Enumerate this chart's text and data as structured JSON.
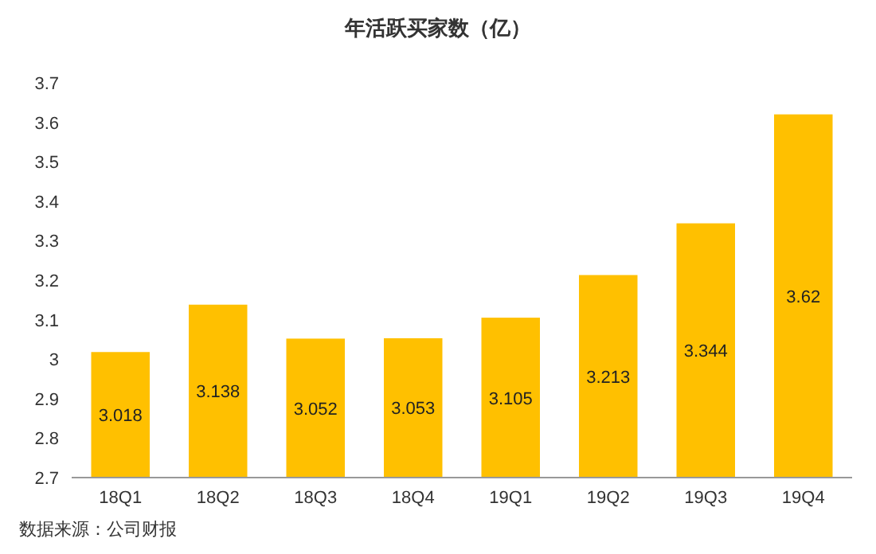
{
  "chart_data": {
    "type": "bar",
    "title": "年活跃买家数（亿）",
    "categories": [
      "18Q1",
      "18Q2",
      "18Q3",
      "18Q4",
      "19Q1",
      "19Q2",
      "19Q3",
      "19Q4"
    ],
    "values": [
      3.018,
      3.138,
      3.052,
      3.053,
      3.105,
      3.213,
      3.344,
      3.62
    ],
    "color": "#ffc000",
    "ylim": [
      2.7,
      3.7
    ],
    "yticks": [
      2.7,
      2.8,
      2.9,
      3,
      3.1,
      3.2,
      3.3,
      3.4,
      3.5,
      3.6,
      3.7
    ],
    "data_labels": true,
    "grid": false,
    "annotations": [
      "数据来源：公司财报"
    ]
  }
}
